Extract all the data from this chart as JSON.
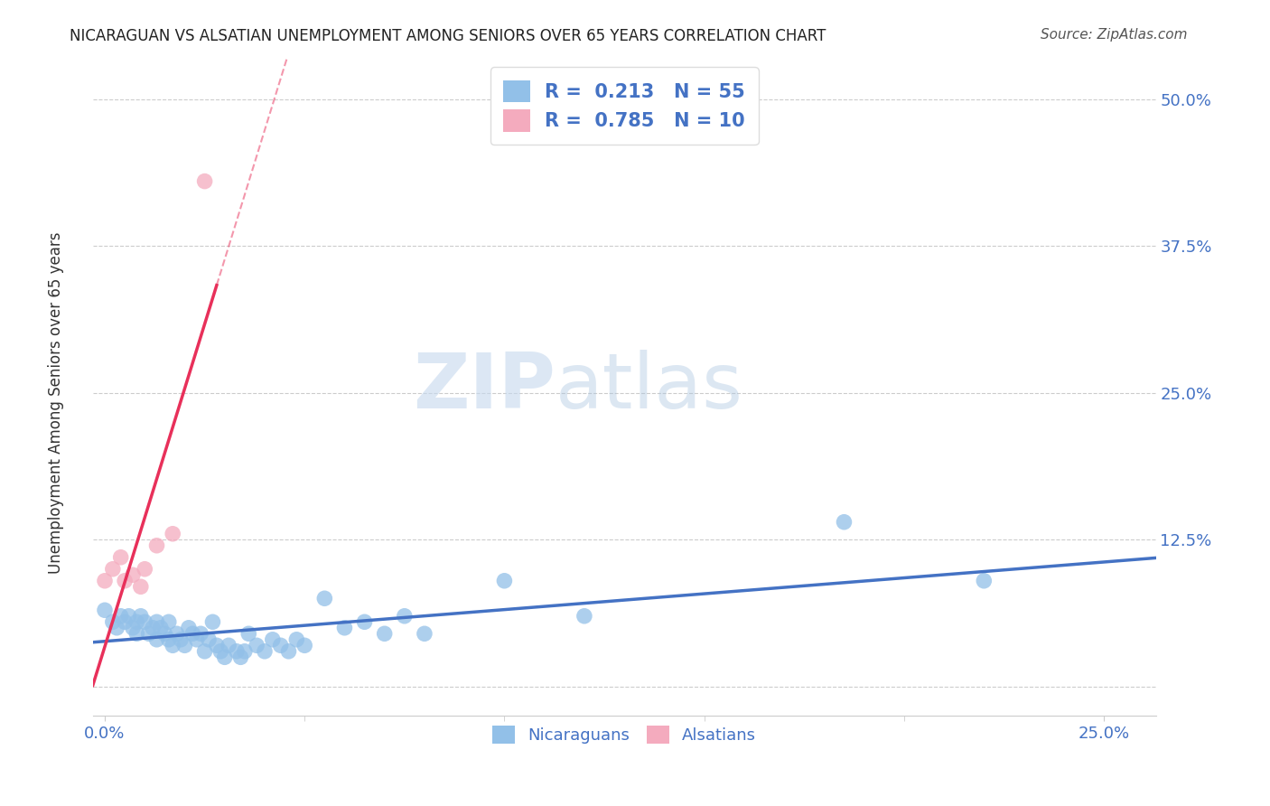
{
  "title": "NICARAGUAN VS ALSATIAN UNEMPLOYMENT AMONG SENIORS OVER 65 YEARS CORRELATION CHART",
  "source": "Source: ZipAtlas.com",
  "ylabel_label": "Unemployment Among Seniors over 65 years",
  "ylim": [
    -0.025,
    0.535
  ],
  "xlim": [
    -0.003,
    0.263
  ],
  "watermark_zip": "ZIP",
  "watermark_atlas": "atlas",
  "legend_blue_R": "0.213",
  "legend_blue_N": "55",
  "legend_pink_R": "0.785",
  "legend_pink_N": "10",
  "blue_color": "#92C0E8",
  "pink_color": "#F4ABBE",
  "trendline_blue_color": "#4472C4",
  "trendline_pink_color": "#E8305A",
  "grid_color": "#CCCCCC",
  "tick_color": "#4472C4",
  "nicaraguan_x": [
    0.0,
    0.002,
    0.003,
    0.004,
    0.005,
    0.006,
    0.007,
    0.008,
    0.008,
    0.009,
    0.01,
    0.011,
    0.012,
    0.013,
    0.013,
    0.014,
    0.015,
    0.016,
    0.016,
    0.017,
    0.018,
    0.019,
    0.02,
    0.021,
    0.022,
    0.023,
    0.024,
    0.025,
    0.026,
    0.027,
    0.028,
    0.029,
    0.03,
    0.031,
    0.033,
    0.034,
    0.035,
    0.036,
    0.038,
    0.04,
    0.042,
    0.044,
    0.046,
    0.048,
    0.05,
    0.055,
    0.06,
    0.065,
    0.07,
    0.075,
    0.08,
    0.1,
    0.12,
    0.185,
    0.22
  ],
  "nicaraguan_y": [
    0.065,
    0.055,
    0.05,
    0.06,
    0.055,
    0.06,
    0.05,
    0.045,
    0.055,
    0.06,
    0.055,
    0.045,
    0.05,
    0.055,
    0.04,
    0.05,
    0.045,
    0.04,
    0.055,
    0.035,
    0.045,
    0.04,
    0.035,
    0.05,
    0.045,
    0.04,
    0.045,
    0.03,
    0.04,
    0.055,
    0.035,
    0.03,
    0.025,
    0.035,
    0.03,
    0.025,
    0.03,
    0.045,
    0.035,
    0.03,
    0.04,
    0.035,
    0.03,
    0.04,
    0.035,
    0.075,
    0.05,
    0.055,
    0.045,
    0.06,
    0.045,
    0.09,
    0.06,
    0.14,
    0.09
  ],
  "alsatian_x": [
    0.0,
    0.002,
    0.004,
    0.005,
    0.007,
    0.009,
    0.01,
    0.013,
    0.017,
    0.025
  ],
  "alsatian_y": [
    0.09,
    0.1,
    0.11,
    0.09,
    0.095,
    0.085,
    0.1,
    0.12,
    0.13,
    0.43
  ]
}
